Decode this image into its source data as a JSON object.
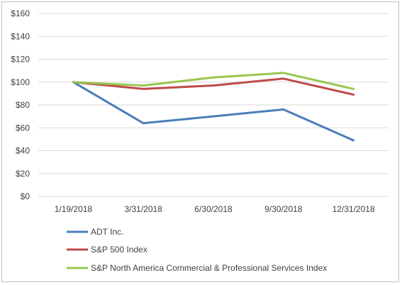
{
  "chart_data": {
    "type": "line",
    "title": "",
    "xlabel": "",
    "ylabel": "",
    "categories": [
      "1/19/2018",
      "3/31/2018",
      "6/30/2018",
      "9/30/2018",
      "12/31/2018"
    ],
    "ylim": [
      0,
      160
    ],
    "y_ticks": [
      0,
      20,
      40,
      60,
      80,
      100,
      120,
      140,
      160
    ],
    "y_tick_labels": [
      "$0",
      "$20",
      "$40",
      "$60",
      "$80",
      "$100",
      "$120",
      "$140",
      "$160"
    ],
    "grid": true,
    "legend_position": "bottom-left",
    "series": [
      {
        "name": "ADT Inc.",
        "color": "#4a7ebb",
        "values": [
          100,
          64,
          70,
          76,
          49
        ]
      },
      {
        "name": "S&P 500 Index",
        "color": "#be4b48",
        "values": [
          100,
          94,
          97,
          103,
          89
        ]
      },
      {
        "name": "S&P North America Commercial & Professional Services Index",
        "color": "#98c650",
        "values": [
          100,
          97,
          104,
          108,
          94
        ]
      }
    ]
  }
}
